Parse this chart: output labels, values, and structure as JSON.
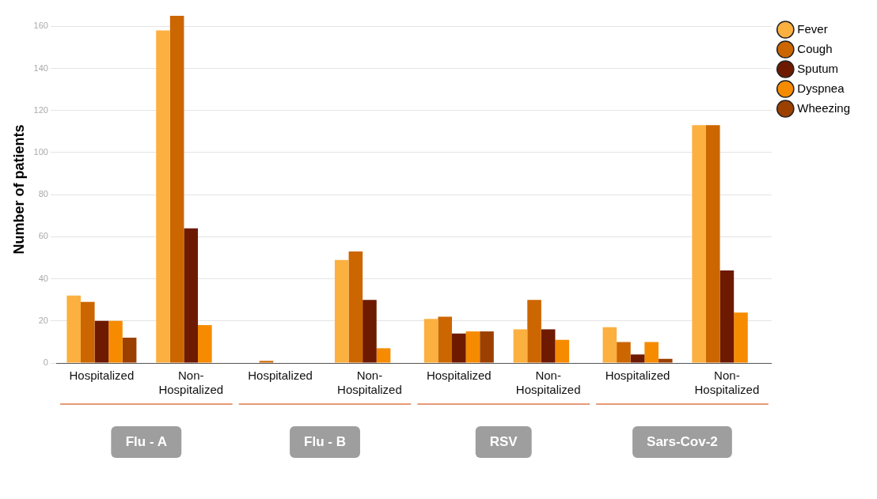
{
  "chart_data": {
    "type": "bar",
    "ylabel": "Number of patients",
    "categories": [
      "Hospitalized",
      "Non-Hospitalized",
      "Hospitalized",
      "Non-Hospitalized",
      "Hospitalized",
      "Non-Hospitalized",
      "Hospitalized",
      "Non-Hospitalized"
    ],
    "series": [
      {
        "name": "Fever",
        "color": "#fbb040",
        "values": [
          32,
          158,
          0,
          49,
          21,
          16,
          17,
          113
        ]
      },
      {
        "name": "Cough",
        "color": "#cc6600",
        "values": [
          29,
          165,
          1,
          53,
          22,
          30,
          10,
          113
        ]
      },
      {
        "name": "Sputum",
        "color": "#6e1a00",
        "values": [
          20,
          64,
          0,
          30,
          14,
          16,
          4,
          44
        ]
      },
      {
        "name": "Dyspnea",
        "color": "#f78b00",
        "values": [
          20,
          18,
          0,
          7,
          15,
          11,
          10,
          24
        ]
      },
      {
        "name": "Wheezing",
        "color": "#9c4000",
        "values": [
          12,
          0,
          0,
          0,
          15,
          0,
          2,
          0
        ]
      }
    ],
    "annotations": [
      "Flu - A",
      "Flu - B",
      "RSV",
      "Sars-Cov-2"
    ],
    "ylim": [
      0,
      165
    ],
    "yticks": [
      0,
      20,
      40,
      60,
      80,
      100,
      120,
      140,
      160
    ],
    "grid": "y",
    "legend": "top right"
  }
}
